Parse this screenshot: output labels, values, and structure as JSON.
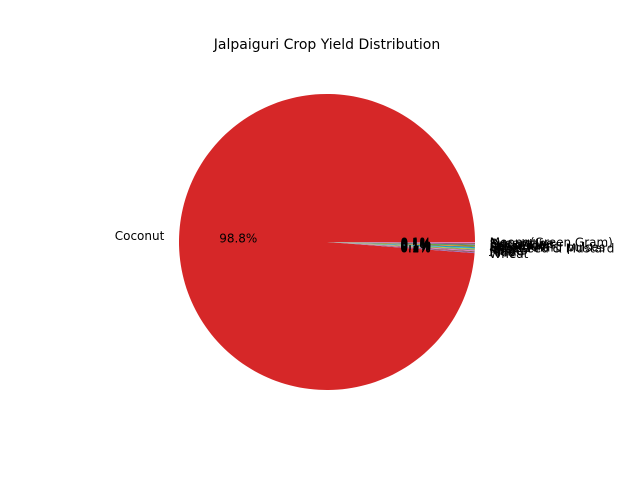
{
  "chart_data": {
    "type": "pie",
    "title": "Jalpaiguri Crop Yield Distribution",
    "start_angle_deg": 0,
    "direction": "counterclockwise",
    "slices": [
      {
        "label": "Coconut",
        "value": 98.8,
        "pct_label": "98.8%",
        "color": "#d62728"
      },
      {
        "label": "Wheat",
        "value": 0.1,
        "pct_label": "0.1%",
        "color": "#9467bd"
      },
      {
        "label": "Rice",
        "value": 0.1,
        "pct_label": "0.1%",
        "color": "#8c564b"
      },
      {
        "label": "Maize",
        "value": 0.1,
        "pct_label": "0.1%",
        "color": "#e377c2"
      },
      {
        "label": "Potato",
        "value": 0.1,
        "pct_label": "0.1%",
        "color": "#7f7f7f"
      },
      {
        "label": "Jute",
        "value": 0.1,
        "pct_label": "0.1%",
        "color": "#bcbd22"
      },
      {
        "label": "Rapeseed & Mustard",
        "value": 0.1,
        "pct_label": "0.1%",
        "color": "#17becf"
      },
      {
        "label": "Other Kharif pulses",
        "value": 0.1,
        "pct_label": "0.1%",
        "color": "#1f77b4"
      },
      {
        "label": "Sesamum",
        "value": 0.1,
        "pct_label": "0.1%",
        "color": "#ff7f0e"
      },
      {
        "label": "Arhar/Tur",
        "value": 0.1,
        "pct_label": "0.1%",
        "color": "#2ca02c"
      },
      {
        "label": "Dry chillies",
        "value": 0.1,
        "pct_label": "0.1%",
        "color": "#9467bd"
      },
      {
        "label": "Sugarcane",
        "value": 0.1,
        "pct_label": "0.1%",
        "color": "#8c564b"
      },
      {
        "label": "Moong(Green Gram)",
        "value": 0.1,
        "pct_label": "0.1%",
        "color": "#e377c2"
      }
    ]
  }
}
